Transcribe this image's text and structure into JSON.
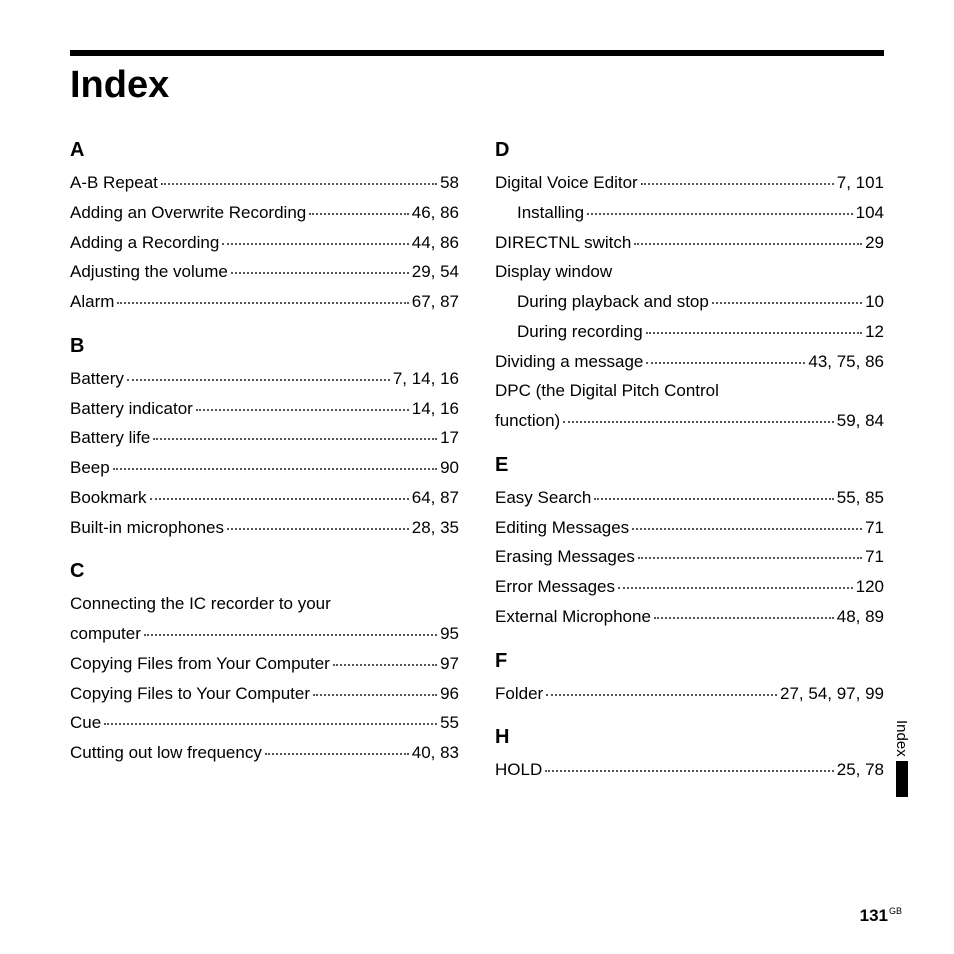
{
  "title": "Index",
  "side_tab": "Index",
  "page_number": "131",
  "page_suffix": "GB",
  "columns": [
    {
      "sections": [
        {
          "letter": "A",
          "entries": [
            {
              "label": "A-B Repeat",
              "pages": "58"
            },
            {
              "label": "Adding an Overwrite Recording",
              "pages": "46, 86"
            },
            {
              "label": "Adding a Recording",
              "pages": "44, 86"
            },
            {
              "label": "Adjusting the volume",
              "pages": "29, 54"
            },
            {
              "label": "Alarm",
              "pages": "67, 87"
            }
          ]
        },
        {
          "letter": "B",
          "entries": [
            {
              "label": "Battery",
              "pages": "7, 14, 16"
            },
            {
              "label": "Battery indicator",
              "pages": "14, 16"
            },
            {
              "label": "Battery life",
              "pages": "17"
            },
            {
              "label": "Beep",
              "pages": "90"
            },
            {
              "label": "Bookmark",
              "pages": "64, 87"
            },
            {
              "label": "Built-in microphones",
              "pages": "28, 35"
            }
          ]
        },
        {
          "letter": "C",
          "entries": [
            {
              "label": "Connecting the IC recorder to your",
              "noleader": true
            },
            {
              "label": "computer",
              "pages": "95"
            },
            {
              "label": "Copying Files from Your Computer",
              "pages": "97"
            },
            {
              "label": "Copying Files to Your Computer",
              "pages": "96"
            },
            {
              "label": "Cue",
              "pages": "55"
            },
            {
              "label": "Cutting out low frequency",
              "pages": "40, 83"
            }
          ]
        }
      ]
    },
    {
      "sections": [
        {
          "letter": "D",
          "entries": [
            {
              "label": "Digital Voice Editor",
              "pages": "7, 101"
            },
            {
              "label": "Installing",
              "pages": "104",
              "sub": true
            },
            {
              "label": "DIRECTNL switch",
              "pages": "29"
            },
            {
              "label": "Display window",
              "noleader": true
            },
            {
              "label": "During playback and stop",
              "pages": "10",
              "sub": true
            },
            {
              "label": "During recording",
              "pages": "12",
              "sub": true
            },
            {
              "label": "Dividing a message",
              "pages": "43, 75, 86"
            },
            {
              "label": "DPC (the Digital Pitch Control",
              "noleader": true
            },
            {
              "label": "function)",
              "pages": "59, 84"
            }
          ]
        },
        {
          "letter": "E",
          "entries": [
            {
              "label": "Easy Search",
              "pages": "55, 85"
            },
            {
              "label": "Editing Messages",
              "pages": "71"
            },
            {
              "label": "Erasing Messages",
              "pages": "71"
            },
            {
              "label": "Error Messages",
              "pages": "120"
            },
            {
              "label": "External Microphone",
              "pages": "48, 89"
            }
          ]
        },
        {
          "letter": "F",
          "entries": [
            {
              "label": "Folder",
              "pages": "27, 54, 97, 99"
            }
          ]
        },
        {
          "letter": "H",
          "entries": [
            {
              "label": "HOLD",
              "pages": "25, 78"
            }
          ]
        }
      ]
    }
  ]
}
